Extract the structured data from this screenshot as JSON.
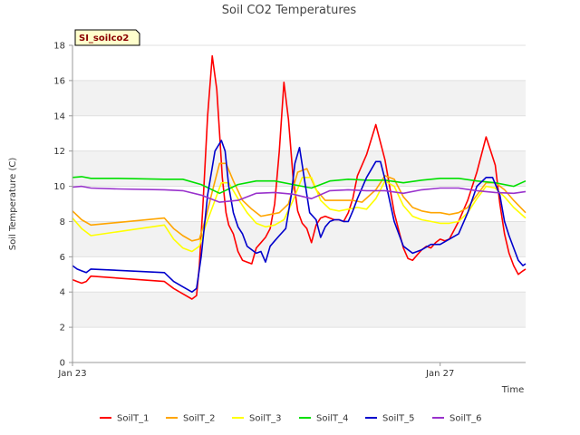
{
  "chart_data": {
    "type": "line",
    "title": "Soil CO2 Temperatures",
    "site_tag": "SI_soilco2",
    "xlabel": "Time",
    "ylabel": "Soil Temperature (C)",
    "ylim": [
      0,
      18
    ],
    "yticks": [
      0,
      2,
      4,
      6,
      8,
      10,
      12,
      14,
      16,
      18
    ],
    "xlim": [
      0,
      4.93
    ],
    "xticks": [
      {
        "value": 0,
        "label": "Jan 23"
      },
      {
        "value": 4,
        "label": "Jan 27"
      }
    ],
    "x_unit_note": "days since Jan 23",
    "grid": true,
    "banded_background": true,
    "legend_position": "bottom",
    "series": [
      {
        "name": "SoilT_1",
        "color": "#ff0000",
        "x": [
          0,
          0.05,
          0.1,
          0.15,
          0.2,
          1.0,
          1.1,
          1.2,
          1.3,
          1.35,
          1.38,
          1.42,
          1.47,
          1.52,
          1.57,
          1.6,
          1.63,
          1.67,
          1.7,
          1.75,
          1.8,
          1.85,
          1.9,
          1.95,
          2.0,
          2.05,
          2.1,
          2.15,
          2.2,
          2.25,
          2.3,
          2.35,
          2.4,
          2.45,
          2.5,
          2.55,
          2.6,
          2.65,
          2.7,
          2.75,
          2.8,
          2.85,
          2.9,
          2.95,
          3.0,
          3.05,
          3.1,
          3.2,
          3.3,
          3.4,
          3.5,
          3.55,
          3.6,
          3.65,
          3.7,
          3.75,
          3.8,
          3.85,
          3.9,
          3.95,
          4.0,
          4.05,
          4.1,
          4.15,
          4.2,
          4.3,
          4.4,
          4.5,
          4.55,
          4.6,
          4.65,
          4.7,
          4.75,
          4.8,
          4.85,
          4.9,
          4.93
        ],
        "y": [
          4.7,
          4.6,
          4.5,
          4.6,
          4.9,
          4.6,
          4.2,
          3.9,
          3.6,
          3.8,
          5.5,
          9.0,
          14.0,
          17.4,
          15.5,
          13.0,
          10.5,
          8.5,
          7.8,
          7.3,
          6.3,
          5.8,
          5.7,
          5.6,
          6.5,
          6.8,
          7.1,
          7.6,
          9.0,
          12.0,
          15.9,
          13.8,
          10.5,
          8.6,
          7.9,
          7.6,
          6.8,
          7.8,
          8.2,
          8.3,
          8.2,
          8.1,
          8.1,
          8.0,
          8.5,
          9.3,
          10.6,
          11.8,
          13.5,
          11.5,
          8.5,
          7.5,
          6.5,
          5.9,
          5.8,
          6.1,
          6.4,
          6.6,
          6.5,
          6.8,
          7.0,
          6.9,
          7.0,
          7.5,
          8.0,
          9.2,
          10.8,
          12.8,
          12.0,
          11.2,
          9.0,
          7.3,
          6.2,
          5.5,
          5.0,
          5.2,
          5.3
        ]
      },
      {
        "name": "SoilT_2",
        "color": "#ffa500",
        "x": [
          0,
          0.1,
          0.2,
          1.0,
          1.1,
          1.2,
          1.3,
          1.38,
          1.45,
          1.52,
          1.6,
          1.67,
          1.75,
          1.85,
          1.95,
          2.05,
          2.15,
          2.25,
          2.35,
          2.45,
          2.55,
          2.65,
          2.75,
          2.85,
          2.95,
          3.05,
          3.15,
          3.3,
          3.4,
          3.5,
          3.6,
          3.7,
          3.8,
          3.9,
          4.0,
          4.1,
          4.2,
          4.3,
          4.4,
          4.5,
          4.6,
          4.7,
          4.8,
          4.93
        ],
        "y": [
          8.6,
          8.1,
          7.8,
          8.2,
          7.6,
          7.2,
          6.9,
          7.0,
          8.2,
          9.7,
          11.3,
          11.3,
          10.3,
          9.2,
          8.7,
          8.3,
          8.4,
          8.5,
          9.0,
          10.8,
          11.0,
          9.8,
          9.2,
          9.2,
          9.2,
          9.2,
          9.1,
          9.8,
          10.6,
          10.4,
          9.4,
          8.8,
          8.6,
          8.5,
          8.5,
          8.4,
          8.5,
          8.8,
          9.5,
          10.2,
          10.2,
          9.8,
          9.2,
          8.5
        ]
      },
      {
        "name": "SoilT_3",
        "color": "#ffff00",
        "x": [
          0,
          0.1,
          0.2,
          1.0,
          1.1,
          1.2,
          1.3,
          1.38,
          1.45,
          1.55,
          1.62,
          1.7,
          1.8,
          1.9,
          2.0,
          2.1,
          2.2,
          2.3,
          2.4,
          2.5,
          2.6,
          2.7,
          2.8,
          2.9,
          3.0,
          3.1,
          3.2,
          3.3,
          3.4,
          3.5,
          3.6,
          3.7,
          3.8,
          3.9,
          4.0,
          4.1,
          4.2,
          4.3,
          4.4,
          4.5,
          4.6,
          4.7,
          4.8,
          4.93
        ],
        "y": [
          8.2,
          7.6,
          7.2,
          7.8,
          7.0,
          6.5,
          6.3,
          6.6,
          7.8,
          9.2,
          10.2,
          10.2,
          9.3,
          8.5,
          7.9,
          7.7,
          7.8,
          8.1,
          9.2,
          10.5,
          10.5,
          9.2,
          8.7,
          8.6,
          8.7,
          8.8,
          8.7,
          9.3,
          10.3,
          10.0,
          8.9,
          8.3,
          8.1,
          8.0,
          7.9,
          7.9,
          8.0,
          8.5,
          9.3,
          10.0,
          9.9,
          9.4,
          8.8,
          8.2
        ]
      },
      {
        "name": "SoilT_4",
        "color": "#00e000",
        "x": [
          0,
          0.1,
          0.2,
          0.5,
          1.0,
          1.2,
          1.4,
          1.6,
          1.8,
          2.0,
          2.2,
          2.4,
          2.6,
          2.8,
          3.0,
          3.2,
          3.4,
          3.6,
          3.8,
          4.0,
          4.2,
          4.4,
          4.6,
          4.8,
          4.93
        ],
        "y": [
          10.5,
          10.55,
          10.45,
          10.45,
          10.4,
          10.4,
          10.1,
          9.6,
          10.1,
          10.3,
          10.3,
          10.1,
          9.9,
          10.3,
          10.4,
          10.35,
          10.35,
          10.2,
          10.35,
          10.45,
          10.45,
          10.3,
          10.2,
          10.0,
          10.3
        ]
      },
      {
        "name": "SoilT_5",
        "color": "#0000cc",
        "x": [
          0,
          0.05,
          0.1,
          0.15,
          0.2,
          1.0,
          1.1,
          1.2,
          1.3,
          1.35,
          1.4,
          1.47,
          1.55,
          1.62,
          1.66,
          1.7,
          1.75,
          1.8,
          1.85,
          1.9,
          1.95,
          2.0,
          2.05,
          2.1,
          2.15,
          2.2,
          2.25,
          2.32,
          2.38,
          2.42,
          2.47,
          2.52,
          2.58,
          2.65,
          2.7,
          2.75,
          2.8,
          2.85,
          2.9,
          2.95,
          3.0,
          3.05,
          3.1,
          3.2,
          3.3,
          3.35,
          3.4,
          3.5,
          3.6,
          3.7,
          3.8,
          3.9,
          4.0,
          4.1,
          4.2,
          4.3,
          4.4,
          4.5,
          4.57,
          4.65,
          4.7,
          4.75,
          4.8,
          4.85,
          4.9,
          4.93
        ],
        "y": [
          5.5,
          5.3,
          5.2,
          5.1,
          5.3,
          5.1,
          4.6,
          4.3,
          4.0,
          4.2,
          6.0,
          9.5,
          12.0,
          12.6,
          12.0,
          10.0,
          8.5,
          7.7,
          7.3,
          6.6,
          6.4,
          6.2,
          6.3,
          5.7,
          6.6,
          6.9,
          7.2,
          7.6,
          9.5,
          11.3,
          12.2,
          10.5,
          8.5,
          8.1,
          7.1,
          7.7,
          8.0,
          8.1,
          8.1,
          8.0,
          8.0,
          8.6,
          9.3,
          10.5,
          11.4,
          11.4,
          10.4,
          8.0,
          6.6,
          6.2,
          6.4,
          6.7,
          6.7,
          7.0,
          7.3,
          8.5,
          10.0,
          10.5,
          10.5,
          9.5,
          8.0,
          7.2,
          6.5,
          5.8,
          5.5,
          5.6
        ]
      },
      {
        "name": "SoilT_6",
        "color": "#9932cc",
        "x": [
          0,
          0.1,
          0.2,
          0.5,
          1.0,
          1.2,
          1.4,
          1.6,
          1.8,
          2.0,
          2.2,
          2.4,
          2.6,
          2.8,
          3.0,
          3.2,
          3.4,
          3.6,
          3.8,
          4.0,
          4.2,
          4.4,
          4.6,
          4.8,
          4.93
        ],
        "y": [
          9.95,
          10.0,
          9.9,
          9.85,
          9.8,
          9.75,
          9.5,
          9.1,
          9.2,
          9.6,
          9.65,
          9.55,
          9.3,
          9.75,
          9.8,
          9.75,
          9.75,
          9.6,
          9.8,
          9.9,
          9.9,
          9.75,
          9.65,
          9.6,
          9.7
        ]
      }
    ]
  }
}
